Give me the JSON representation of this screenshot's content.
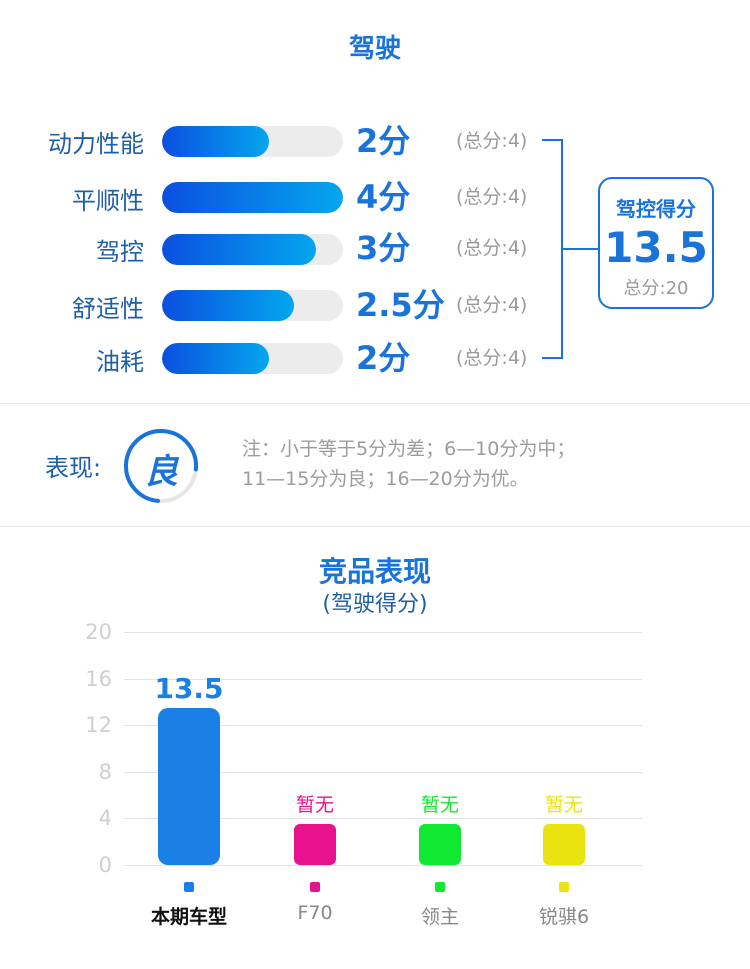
{
  "header": {
    "title": "驾驶"
  },
  "rows": [
    {
      "label": "动力性能",
      "score": "2分",
      "max": "(总分:4)",
      "fraction": 0.59
    },
    {
      "label": "平顺性",
      "score": "4分",
      "max": "(总分:4)",
      "fraction": 1.0
    },
    {
      "label": "驾控",
      "score": "3分",
      "max": "(总分:4)",
      "fraction": 0.85
    },
    {
      "label": "舒适性",
      "score": "2.5分",
      "max": "(总分:4)",
      "fraction": 0.73
    },
    {
      "label": "油耗",
      "score": "2分",
      "max": "(总分:4)",
      "fraction": 0.59
    }
  ],
  "summary": {
    "title": "驾控得分",
    "value": "13.5",
    "total": "总分:20"
  },
  "performance": {
    "label": "表现:",
    "grade": "良",
    "note_line1": "注：小于等于5分为差；6—10分为中；",
    "note_line2": "11—15分为良；16—20分为优。"
  },
  "competitors": {
    "title": "竞品表现",
    "subtitle": "(驾驶得分)"
  },
  "colors": {
    "accent": "#1a73d9",
    "f70": "#e8128f",
    "lingzhu": "#11e832",
    "ruiqi": "#ebe30f",
    "self": "#1a7fe6"
  },
  "chart_data": {
    "type": "bar",
    "title": "竞品表现",
    "subtitle": "(驾驶得分)",
    "ylim": [
      0,
      20
    ],
    "yticks": [
      "20",
      "16",
      "12",
      "8",
      "4",
      "0"
    ],
    "categories": [
      "本期车型",
      "F70",
      "领主",
      "锐骐6"
    ],
    "values": [
      13.5,
      null,
      null,
      null
    ],
    "data_labels": [
      "13.5",
      "暂无",
      "暂无",
      "暂无"
    ],
    "bar_colors": [
      "#1a7fe6",
      "#e8128f",
      "#11e832",
      "#ebe30f"
    ],
    "grid": true
  }
}
